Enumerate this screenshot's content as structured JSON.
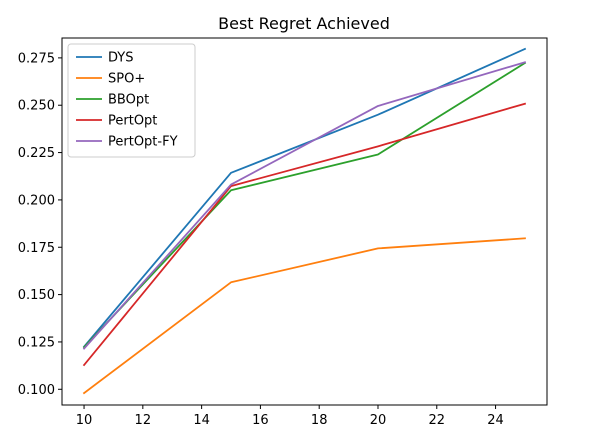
{
  "chart_data": {
    "type": "line",
    "title": "Best Regret Achieved",
    "xlabel": "",
    "ylabel": "",
    "x": [
      10,
      15,
      20,
      25
    ],
    "xlim": [
      9.25,
      25.75
    ],
    "ylim": [
      0.0917,
      0.2855
    ],
    "x_ticks": [
      10,
      12,
      14,
      16,
      18,
      20,
      22,
      24
    ],
    "y_ticks": [
      0.1,
      0.125,
      0.15,
      0.175,
      0.2,
      0.225,
      0.25,
      0.275
    ],
    "y_tick_labels": [
      "0.100",
      "0.125",
      "0.150",
      "0.175",
      "0.200",
      "0.225",
      "0.250",
      "0.275"
    ],
    "grid": false,
    "legend_position": "upper-left",
    "series": [
      {
        "name": "DYS",
        "color": "#1f77b4",
        "values": [
          0.1225,
          0.2143,
          0.245,
          0.2797
        ]
      },
      {
        "name": "SPO+",
        "color": "#ff7f0e",
        "values": [
          0.098,
          0.1565,
          0.1744,
          0.1797
        ]
      },
      {
        "name": "BBOpt",
        "color": "#2ca02c",
        "values": [
          0.1222,
          0.2051,
          0.224,
          0.2723
        ]
      },
      {
        "name": "PertOpt",
        "color": "#d62728",
        "values": [
          0.1128,
          0.2073,
          0.2283,
          0.2508
        ]
      },
      {
        "name": "PertOpt-FY",
        "color": "#9467bd",
        "values": [
          0.1215,
          0.2081,
          0.2496,
          0.2727
        ]
      }
    ]
  }
}
